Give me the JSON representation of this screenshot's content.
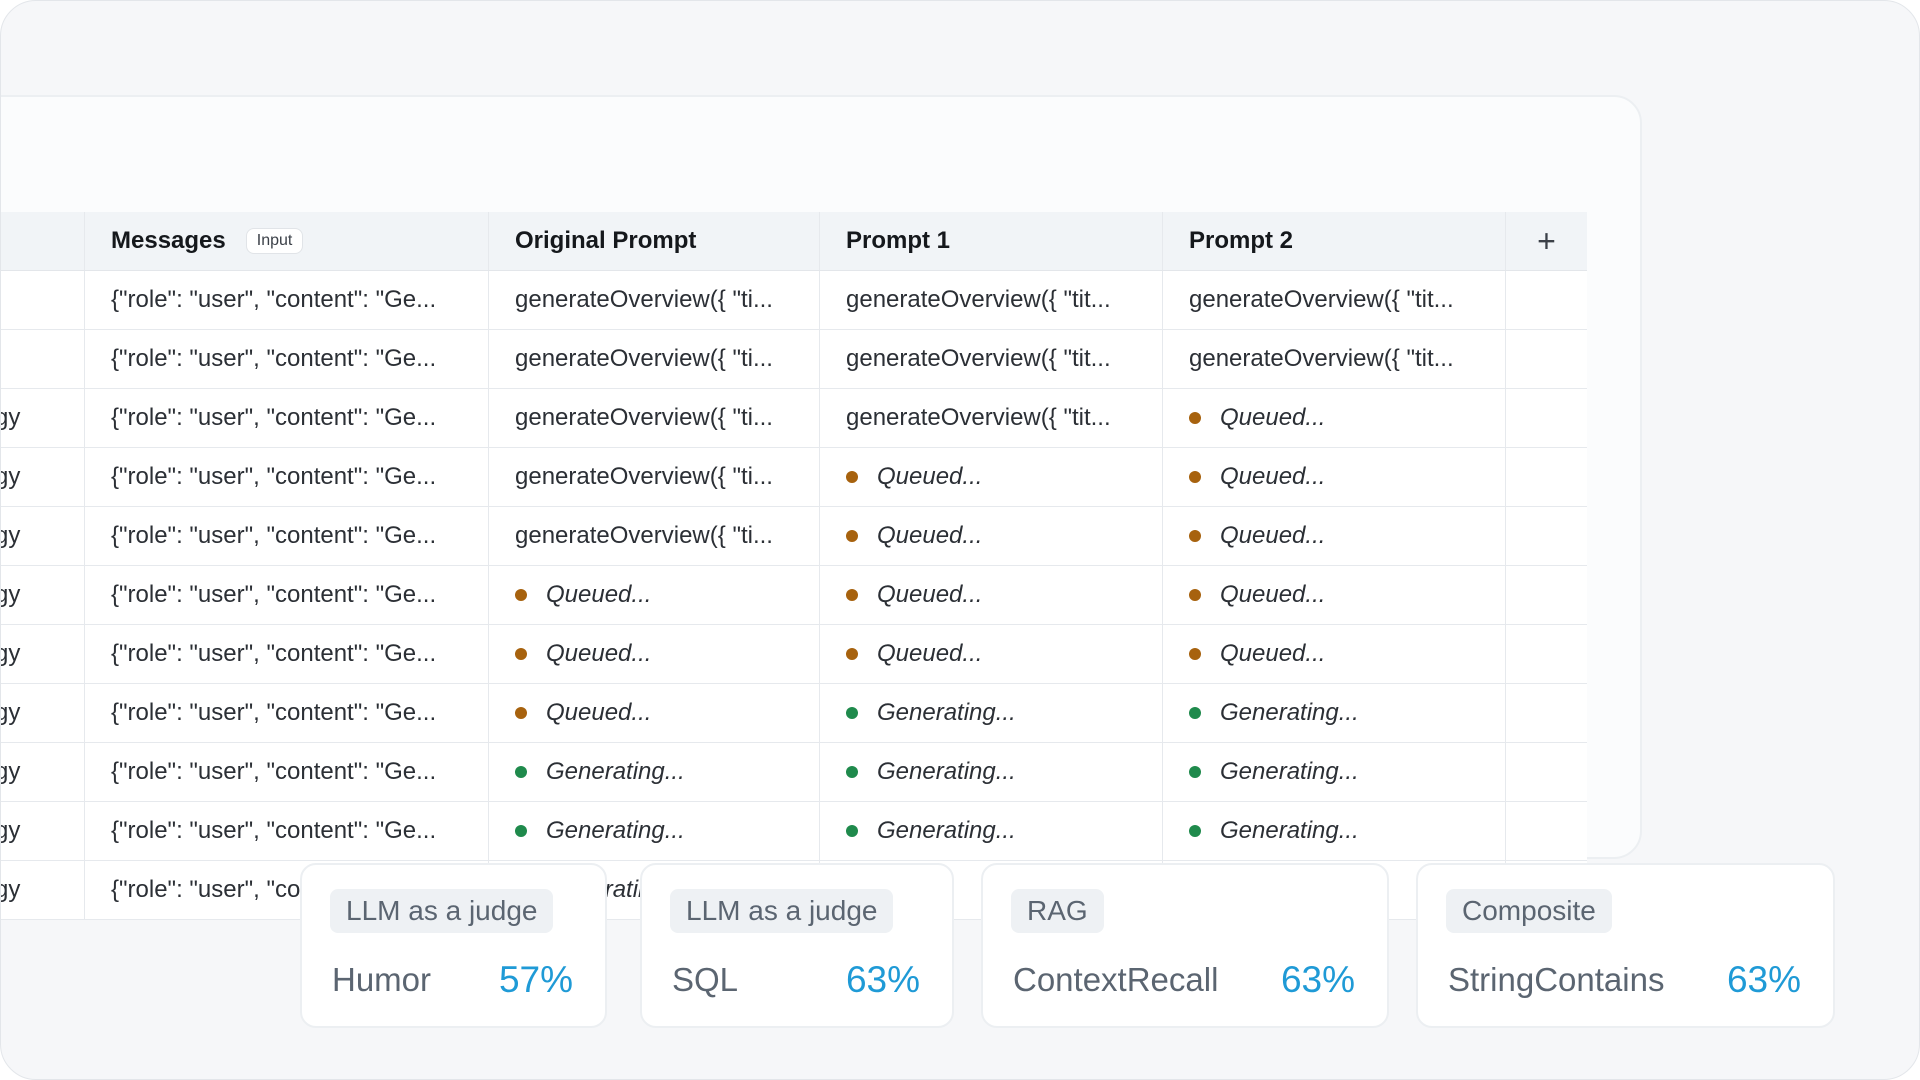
{
  "table": {
    "columns": {
      "first": "",
      "messages": "Messages",
      "messages_tag": "Input",
      "original": "Original Prompt",
      "prompt1": "Prompt 1",
      "prompt2": "Prompt 2",
      "add": "+"
    },
    "rows": [
      {
        "first": "",
        "messages": "{\"role\": \"user\", \"content\": \"Ge...",
        "original": {
          "text": "generateOverview({ \"ti..."
        },
        "p1": {
          "text": "generateOverview({ \"tit..."
        },
        "p2": {
          "text": "generateOverview({ \"tit..."
        }
      },
      {
        "first": "",
        "messages": "{\"role\": \"user\", \"content\": \"Ge...",
        "original": {
          "text": "generateOverview({ \"ti..."
        },
        "p1": {
          "text": "generateOverview({ \"tit..."
        },
        "p2": {
          "text": "generateOverview({ \"tit..."
        }
      },
      {
        "first": "ology",
        "messages": "{\"role\": \"user\", \"content\": \"Ge...",
        "original": {
          "text": "generateOverview({ \"ti..."
        },
        "p1": {
          "text": "generateOverview({ \"tit..."
        },
        "p2": {
          "status": "queued",
          "text": "Queued..."
        }
      },
      {
        "first": "ology",
        "messages": "{\"role\": \"user\", \"content\": \"Ge...",
        "original": {
          "text": "generateOverview({ \"ti..."
        },
        "p1": {
          "status": "queued",
          "text": "Queued..."
        },
        "p2": {
          "status": "queued",
          "text": "Queued..."
        }
      },
      {
        "first": "ology",
        "messages": "{\"role\": \"user\", \"content\": \"Ge...",
        "original": {
          "text": "generateOverview({ \"ti..."
        },
        "p1": {
          "status": "queued",
          "text": "Queued..."
        },
        "p2": {
          "status": "queued",
          "text": "Queued..."
        }
      },
      {
        "first": "ology",
        "messages": "{\"role\": \"user\", \"content\": \"Ge...",
        "original": {
          "status": "queued",
          "text": "Queued..."
        },
        "p1": {
          "status": "queued",
          "text": "Queued..."
        },
        "p2": {
          "status": "queued",
          "text": "Queued..."
        }
      },
      {
        "first": "ology",
        "messages": "{\"role\": \"user\", \"content\": \"Ge...",
        "original": {
          "status": "queued",
          "text": "Queued..."
        },
        "p1": {
          "status": "queued",
          "text": "Queued..."
        },
        "p2": {
          "status": "queued",
          "text": "Queued..."
        }
      },
      {
        "first": "ology",
        "messages": "{\"role\": \"user\", \"content\": \"Ge...",
        "original": {
          "status": "queued",
          "text": "Queued..."
        },
        "p1": {
          "status": "generating",
          "text": "Generating..."
        },
        "p2": {
          "status": "generating",
          "text": "Generating..."
        }
      },
      {
        "first": "ology",
        "messages": "{\"role\": \"user\", \"content\": \"Ge...",
        "original": {
          "status": "generating",
          "text": "Generating..."
        },
        "p1": {
          "status": "generating",
          "text": "Generating..."
        },
        "p2": {
          "status": "generating",
          "text": "Generating..."
        }
      },
      {
        "first": "ology",
        "messages": "{\"role\": \"user\", \"content\": \"Ge...",
        "original": {
          "status": "generating",
          "text": "Generating..."
        },
        "p1": {
          "status": "generating",
          "text": "Generating..."
        },
        "p2": {
          "status": "generating",
          "text": "Generating..."
        }
      },
      {
        "first": "ology",
        "messages": "{\"role\": \"user\", \"content\": \"Ge...",
        "original": {
          "status": "generating",
          "text": "Generating..."
        },
        "p1": {
          "action": "play"
        },
        "p2": {
          "action": "play"
        }
      }
    ]
  },
  "metrics": [
    {
      "tag": "LLM as a judge",
      "name": "Humor",
      "value": "57%"
    },
    {
      "tag": "LLM as a judge",
      "name": "SQL",
      "value": "63%"
    },
    {
      "tag": "RAG",
      "name": "ContextRecall",
      "value": "63%"
    },
    {
      "tag": "Composite",
      "name": "StringContains",
      "value": "63%"
    }
  ],
  "icons": {
    "add": "plus-icon",
    "play": "play-icon"
  },
  "colors": {
    "queued": "#a7620e",
    "generating": "#1f8a4c",
    "metric_value": "#1f9ad6"
  }
}
